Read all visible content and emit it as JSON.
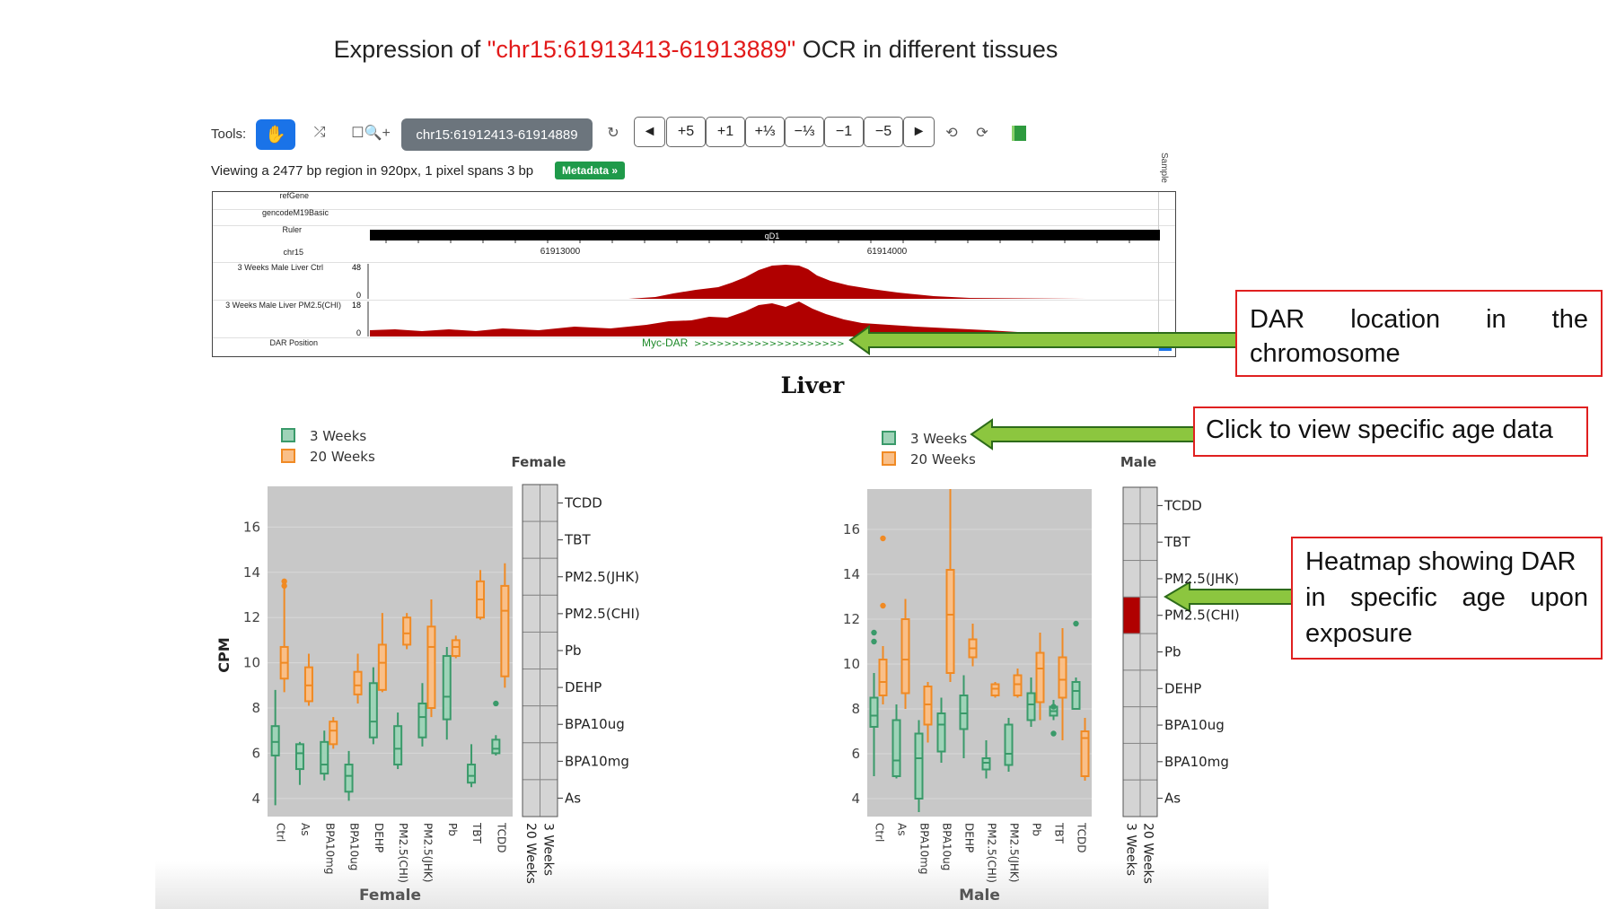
{
  "title": {
    "prefix": "Expression of ",
    "region": "\"chr15:61913413-61913889\"",
    "suffix": " OCR in different tissues"
  },
  "toolbar": {
    "tools_label": "Tools:",
    "hand_icon": "hand-icon",
    "region_value": "chr15:61912413-61914889",
    "nav_buttons": [
      "◄",
      "+5",
      "+1",
      "+⅓",
      "−⅓",
      "−1",
      "−5",
      "►"
    ]
  },
  "view_info": {
    "text": "Viewing a 2477 bp region in 920px, 1 pixel spans 3 bp",
    "metadata": "Metadata »",
    "sample": "Sample"
  },
  "tracks": {
    "refgene": "refGene",
    "gencode": "gencodeM19Basic",
    "ruler": "Ruler",
    "chrom": "chr15",
    "band": "qD1",
    "pos1": "61913000",
    "pos2": "61914000",
    "ctrl_label": "3 Weeks Male Liver Ctrl",
    "ctrl_max": "48",
    "ctrl_min": "0",
    "pm_label": "3 Weeks Male Liver PM2.5(CHI)",
    "pm_max": "18",
    "pm_min": "0",
    "dar_label": "DAR Position",
    "dar_name": "Myc-DAR"
  },
  "callouts": {
    "dar_location": [
      "DAR",
      "location",
      "in",
      "the",
      "chromosome"
    ],
    "click_age": "Click to view specific age data",
    "heatmap": [
      "Heatmap showing DAR",
      "in specific age upon",
      "exposure"
    ]
  },
  "colors": {
    "green": "#3a9a6a",
    "green_fill": "#9fd3b8",
    "orange": "#f08a24",
    "orange_fill": "#f9bf88",
    "dar_red": "#b00000",
    "arrow_green": "#8cc63f"
  },
  "liver_title": "Liver",
  "chart_data": [
    {
      "type": "box",
      "name": "Female",
      "ylabel": "CPM",
      "xlabel": "Female",
      "ylim": [
        3.2,
        17.8
      ],
      "yticks": [
        4,
        6,
        8,
        10,
        12,
        14,
        16
      ],
      "categories": [
        "Ctrl",
        "As",
        "BPA10mg",
        "BPA10ug",
        "DEHP",
        "PM2.5(CHI)",
        "PM2.5(JHK)",
        "Pb",
        "TBT",
        "TCDD"
      ],
      "legend": [
        "3 Weeks",
        "20 Weeks"
      ],
      "series": [
        {
          "name": "3 Weeks",
          "boxes": [
            [
              3.7,
              5.9,
              6.5,
              7.2,
              8.8
            ],
            [
              4.6,
              5.3,
              6.0,
              6.4,
              6.5
            ],
            [
              4.8,
              5.1,
              5.5,
              6.5,
              7.0
            ],
            [
              3.9,
              4.3,
              5.0,
              5.5,
              6.1
            ],
            [
              6.4,
              6.7,
              7.4,
              9.1,
              9.8
            ],
            [
              5.3,
              5.5,
              6.2,
              7.2,
              7.8
            ],
            [
              6.3,
              6.7,
              7.6,
              8.2,
              9.1
            ],
            [
              6.6,
              7.5,
              8.5,
              10.3,
              10.7
            ],
            [
              4.5,
              4.7,
              5.0,
              5.5,
              6.4
            ],
            [
              5.9,
              6.0,
              6.2,
              6.6,
              6.8
            ]
          ],
          "outliers": [
            [],
            [],
            [],
            [],
            [],
            [],
            [],
            [],
            [],
            [
              8.2
            ]
          ]
        },
        {
          "name": "20 Weeks",
          "boxes": [
            [
              8.7,
              9.3,
              10.0,
              10.7,
              13.3
            ],
            [
              8.1,
              8.3,
              9.0,
              9.8,
              10.4
            ],
            [
              6.2,
              6.4,
              7.0,
              7.4,
              7.6
            ],
            [
              8.2,
              8.6,
              9.0,
              9.6,
              10.4
            ],
            [
              8.7,
              8.8,
              10.0,
              10.8,
              12.2
            ],
            [
              10.6,
              10.8,
              11.3,
              12.0,
              12.2
            ],
            [
              7.6,
              8.0,
              10.7,
              11.6,
              12.8
            ],
            [
              10.2,
              10.3,
              10.7,
              11.0,
              11.2
            ],
            [
              11.9,
              12.0,
              12.8,
              13.6,
              14.1
            ],
            [
              8.9,
              9.4,
              12.3,
              13.4,
              14.4
            ]
          ],
          "outliers": [
            [
              13.6,
              13.4
            ],
            [],
            [],
            [],
            [],
            [],
            [],
            [],
            [],
            []
          ]
        }
      ],
      "heatmap": {
        "rows": [
          "TCDD",
          "TBT",
          "PM2.5(JHK)",
          "PM2.5(CHI)",
          "Pb",
          "DEHP",
          "BPA10ug",
          "BPA10mg",
          "As"
        ],
        "cols": [
          "20 Weeks",
          "3 Weeks"
        ],
        "highlight": []
      }
    },
    {
      "type": "box",
      "name": "Male",
      "ylabel": "",
      "xlabel": "Male",
      "ylim": [
        3.2,
        17.8
      ],
      "yticks": [
        4,
        6,
        8,
        10,
        12,
        14,
        16
      ],
      "categories": [
        "Ctrl",
        "As",
        "BPA10mg",
        "BPA10ug",
        "DEHP",
        "PM2.5(CHI)",
        "PM2.5(JHK)",
        "Pb",
        "TBT",
        "TCDD"
      ],
      "legend": [
        "3 Weeks",
        "20 Weeks"
      ],
      "series": [
        {
          "name": "3 Weeks",
          "boxes": [
            [
              5.0,
              7.2,
              7.7,
              8.5,
              9.6
            ],
            [
              4.9,
              5.0,
              5.7,
              7.5,
              8.2
            ],
            [
              3.4,
              4.0,
              5.8,
              6.9,
              7.5
            ],
            [
              5.6,
              6.1,
              7.3,
              7.8,
              8.5
            ],
            [
              5.8,
              7.1,
              7.8,
              8.6,
              9.5
            ],
            [
              4.9,
              5.3,
              5.6,
              5.8,
              6.6
            ],
            [
              5.2,
              5.5,
              6.0,
              7.3,
              7.6
            ],
            [
              7.2,
              7.5,
              8.2,
              8.7,
              9.4
            ],
            [
              7.5,
              7.7,
              7.9,
              8.1,
              8.4
            ],
            [
              8.0,
              8.0,
              8.8,
              9.2,
              9.4
            ]
          ],
          "outliers": [
            [
              11.4,
              11.0
            ],
            [],
            [],
            [],
            [],
            [],
            [],
            [],
            [
              8.1,
              6.9
            ],
            [
              11.8
            ]
          ]
        },
        {
          "name": "20 Weeks",
          "boxes": [
            [
              8.2,
              8.6,
              9.2,
              10.2,
              10.8
            ],
            [
              8.0,
              8.7,
              10.2,
              12.0,
              12.9
            ],
            [
              6.5,
              7.3,
              8.2,
              9.0,
              9.2
            ],
            [
              9.2,
              9.6,
              12.2,
              14.2,
              17.8
            ],
            [
              9.9,
              10.3,
              10.7,
              11.1,
              11.8
            ],
            [
              8.5,
              8.6,
              8.9,
              9.1,
              9.2
            ],
            [
              8.5,
              8.6,
              9.1,
              9.5,
              9.8
            ],
            [
              7.5,
              8.3,
              9.8,
              10.5,
              11.4
            ],
            [
              6.6,
              8.5,
              9.3,
              10.3,
              11.6
            ],
            [
              4.8,
              5.0,
              6.7,
              7.0,
              7.6
            ]
          ],
          "outliers": [
            [
              15.6,
              12.6
            ],
            [],
            [],
            [],
            [],
            [],
            [],
            [],
            [],
            []
          ]
        }
      ],
      "heatmap": {
        "rows": [
          "TCDD",
          "TBT",
          "PM2.5(JHK)",
          "PM2.5(CHI)",
          "Pb",
          "DEHP",
          "BPA10ug",
          "BPA10mg",
          "As"
        ],
        "cols": [
          "3 Weeks",
          "20 Weeks"
        ],
        "highlight": [
          [
            "PM2.5(CHI)",
            "3 Weeks"
          ]
        ]
      }
    }
  ]
}
